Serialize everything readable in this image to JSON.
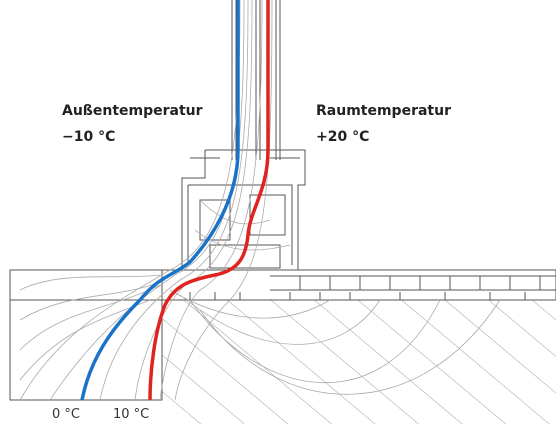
{
  "outside": {
    "title": "Außentemperatur",
    "temperature": "−10 °C"
  },
  "inside": {
    "title": "Raumtemperatur",
    "temperature": "+20 °C"
  },
  "isotherms": [
    "0 °C",
    "10 °C"
  ]
}
